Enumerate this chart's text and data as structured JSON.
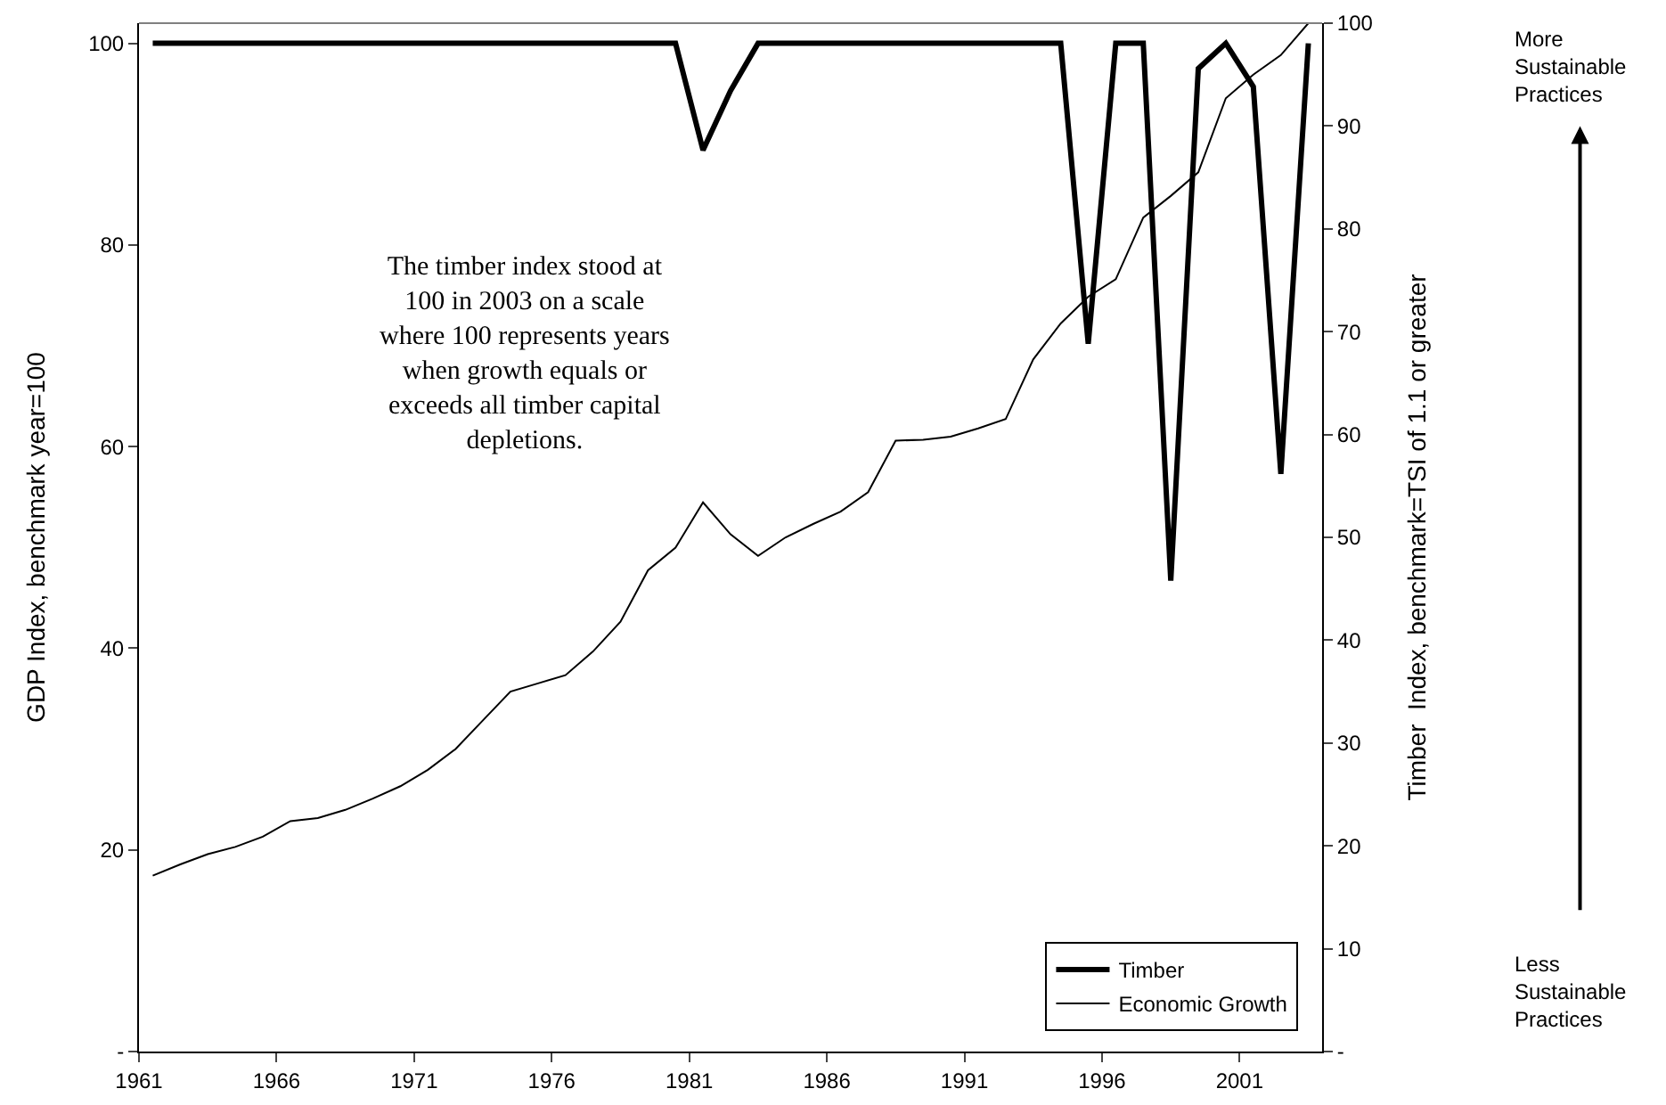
{
  "chart_data": {
    "type": "line",
    "ylabel": "GDP Index, benchmark year=100",
    "y2label": "Timber  Index, benchmark=TSI of 1.1 or greater",
    "x": [
      1961,
      1962,
      1963,
      1964,
      1965,
      1966,
      1967,
      1968,
      1969,
      1970,
      1971,
      1972,
      1973,
      1974,
      1975,
      1976,
      1977,
      1978,
      1979,
      1980,
      1981,
      1982,
      1983,
      1984,
      1985,
      1986,
      1987,
      1988,
      1989,
      1990,
      1991,
      1992,
      1993,
      1994,
      1995,
      1996,
      1997,
      1998,
      1999,
      2000,
      2001,
      2002,
      2003
    ],
    "series": [
      {
        "name": "Timber",
        "color": "#000000",
        "axis": "y",
        "values": [
          100,
          100,
          100,
          100,
          100,
          100,
          100,
          100,
          100,
          100,
          100,
          100,
          100,
          100,
          100,
          100,
          100,
          100,
          100,
          100,
          89.4,
          95.3,
          100,
          100,
          100,
          100,
          100,
          100,
          100,
          100,
          100,
          100,
          100,
          100,
          70.2,
          100,
          100,
          46.7,
          97.5,
          100,
          95.7,
          57.3,
          100
        ]
      },
      {
        "name": "Economic Growth",
        "color": "#000000",
        "axis": "y2",
        "values": [
          17.1,
          18.2,
          19.2,
          19.9,
          20.9,
          22.4,
          22.7,
          23.5,
          24.6,
          25.8,
          27.4,
          29.4,
          32.2,
          35.0,
          35.8,
          36.6,
          38.9,
          41.8,
          46.8,
          49.0,
          53.4,
          50.3,
          48.2,
          50.0,
          51.3,
          52.5,
          54.4,
          59.4,
          59.5,
          59.8,
          60.6,
          61.5,
          67.3,
          70.8,
          73.4,
          75.1,
          81.1,
          83.2,
          85.5,
          92.7,
          95.0,
          96.9,
          100
        ]
      }
    ],
    "xlim": [
      1960.5,
      2003.5
    ],
    "xticks": [
      {
        "value": 1960.5,
        "label": "1961"
      },
      {
        "value": 1965.5,
        "label": "1966"
      },
      {
        "value": 1970.5,
        "label": "1971"
      },
      {
        "value": 1975.5,
        "label": "1976"
      },
      {
        "value": 1980.5,
        "label": "1981"
      },
      {
        "value": 1985.5,
        "label": "1986"
      },
      {
        "value": 1990.5,
        "label": "1991"
      },
      {
        "value": 1995.5,
        "label": "1996"
      },
      {
        "value": 2000.5,
        "label": "2001"
      }
    ],
    "ylim": [
      0,
      102
    ],
    "yticks": [
      {
        "value": 0,
        "label": "-"
      },
      20,
      40,
      60,
      80,
      100
    ],
    "y2lim": [
      0,
      100
    ],
    "y2ticks": [
      {
        "value": 0,
        "label": "-"
      },
      10,
      20,
      30,
      40,
      50,
      60,
      70,
      80,
      90,
      100
    ],
    "annotations": [
      "The timber index stood at 100 in 2003 on a scale where 100 represents years when growth equals or exceeds all timber capital depletions.",
      "More Sustainable Practices",
      "Less Sustainable Practices"
    ],
    "legend": "bottom right",
    "grid": false,
    "marker": "none"
  }
}
